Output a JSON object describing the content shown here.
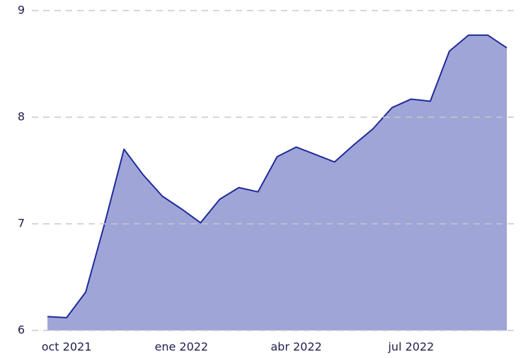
{
  "chart_data": {
    "type": "area",
    "categories": [
      null,
      "oct 2021",
      null,
      null,
      null,
      null,
      null,
      "ene 2022",
      null,
      null,
      null,
      null,
      null,
      "abr 2022",
      null,
      null,
      null,
      null,
      null,
      "jul 2022",
      null,
      null,
      null,
      null,
      null
    ],
    "values": [
      6.13,
      6.12,
      6.36,
      7.01,
      7.7,
      7.46,
      7.26,
      7.14,
      7.01,
      7.23,
      7.34,
      7.3,
      7.63,
      7.72,
      7.65,
      7.58,
      7.74,
      7.89,
      8.09,
      8.17,
      8.15,
      8.62,
      8.77,
      8.77,
      8.65
    ],
    "color": "#a0a5d8",
    "line_color": "#1f2a9a",
    "ylim": [
      6,
      9
    ],
    "yticks": [
      6,
      7,
      8,
      9
    ],
    "grid": true
  }
}
